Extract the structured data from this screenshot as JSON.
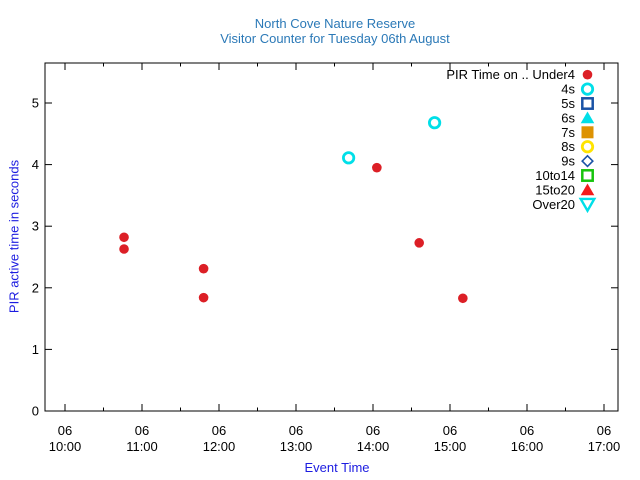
{
  "title": {
    "line1": "North Cove Nature Reserve",
    "line2": "Visitor Counter for Tuesday 06th August"
  },
  "axes": {
    "y_label": "PIR active time in seconds",
    "x_label": "Event Time",
    "y_ticks": [
      "0",
      "1",
      "2",
      "3",
      "4",
      "5"
    ],
    "x_ticks": [
      {
        "day": "06",
        "time": "10:00"
      },
      {
        "day": "06",
        "time": "11:00"
      },
      {
        "day": "06",
        "time": "12:00"
      },
      {
        "day": "06",
        "time": "13:00"
      },
      {
        "day": "06",
        "time": "14:00"
      },
      {
        "day": "06",
        "time": "15:00"
      },
      {
        "day": "06",
        "time": "16:00"
      },
      {
        "day": "06",
        "time": "17:00"
      }
    ]
  },
  "colors": {
    "title": "#2b79b7",
    "axis_label": "#1c1ce0",
    "tick_label": "#000000",
    "border": "#000000",
    "red": "#dc1f26",
    "cyan": "#00dfe8",
    "blue": "#1a53a6",
    "orange": "#dd9202",
    "yellow": "#ffe400",
    "green": "#17c40c",
    "bright_red": "#f41b1b"
  },
  "legend": {
    "position": "top-right-inside",
    "title": "PIR Time on .. Under4"
  },
  "chart_data": {
    "type": "scatter",
    "title": "North Cove Nature Reserve — Visitor Counter for Tuesday 06th August",
    "xlabel": "Event Time",
    "ylabel": "PIR active time in seconds",
    "xlim": [
      "09:45",
      "17:11"
    ],
    "ylim": [
      0,
      5.65
    ],
    "x_axis": {
      "major_tick_interval_minutes": 60,
      "minor_tick_interval_minutes": 30,
      "day_label": "06"
    },
    "grid": false,
    "series": [
      {
        "name": "Under4",
        "legend_label": "PIR Time on .. Under4",
        "marker": "circle-filled",
        "color": "#dc1f26",
        "points": [
          {
            "time": "10:46",
            "seconds": 2.82
          },
          {
            "time": "10:46",
            "seconds": 2.63
          },
          {
            "time": "11:48",
            "seconds": 2.31
          },
          {
            "time": "11:48",
            "seconds": 1.84
          },
          {
            "time": "14:03",
            "seconds": 3.95
          },
          {
            "time": "14:36",
            "seconds": 2.73
          },
          {
            "time": "15:10",
            "seconds": 1.83
          }
        ]
      },
      {
        "name": "4s",
        "marker": "circle-open",
        "color": "#00dfe8",
        "points": [
          {
            "time": "13:41",
            "seconds": 4.11
          },
          {
            "time": "14:48",
            "seconds": 4.68
          }
        ]
      },
      {
        "name": "5s",
        "marker": "square-open",
        "color": "#1a53a6",
        "points": []
      },
      {
        "name": "6s",
        "marker": "triangle-up-filled",
        "color": "#00dfe8",
        "points": []
      },
      {
        "name": "7s",
        "marker": "square-filled",
        "color": "#dd9202",
        "points": []
      },
      {
        "name": "8s",
        "marker": "circle-open",
        "color": "#ffe400",
        "points": []
      },
      {
        "name": "9s",
        "marker": "diamond-open",
        "color": "#1a53a6",
        "points": []
      },
      {
        "name": "10to14",
        "marker": "square-open",
        "color": "#17c40c",
        "points": []
      },
      {
        "name": "15to20",
        "marker": "triangle-up-filled",
        "color": "#f41b1b",
        "points": []
      },
      {
        "name": "Over20",
        "marker": "triangle-down-open",
        "color": "#00dfe8",
        "points": []
      }
    ]
  }
}
